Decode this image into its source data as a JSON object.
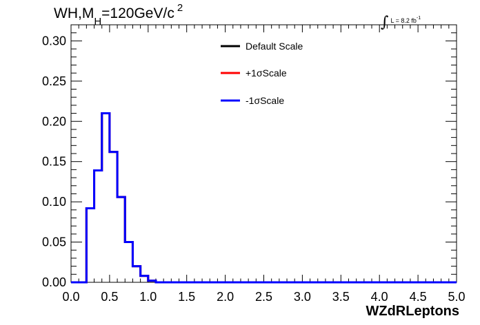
{
  "header": {
    "title_main": "WH,M",
    "title_sub": "H",
    "title_rest": "=120GeV/c",
    "title_sup": "2",
    "lumi_integral": "∫",
    "lumi_text": "L = 8.2 fb",
    "lumi_sup": "-1"
  },
  "chart_data": {
    "type": "line",
    "title": "WH,M_H=120GeV/c^2",
    "xlabel": "WZdRLeptons",
    "ylabel": "",
    "xlim": [
      0.0,
      5.0
    ],
    "ylim": [
      0.0,
      0.32
    ],
    "x_ticks": [
      "0.0",
      "0.5",
      "1.0",
      "1.5",
      "2.0",
      "2.5",
      "3.0",
      "3.5",
      "4.0",
      "4.5",
      "5.0"
    ],
    "y_ticks": [
      "0.00",
      "0.05",
      "0.10",
      "0.15",
      "0.20",
      "0.25",
      "0.30"
    ],
    "bin_edges": [
      0.0,
      0.1,
      0.2,
      0.3,
      0.4,
      0.5,
      0.6,
      0.7,
      0.8,
      0.9,
      1.0,
      1.1,
      1.2,
      1.3,
      1.4,
      1.5,
      1.6,
      1.7,
      1.8,
      1.9,
      2.0,
      2.1,
      2.2,
      2.3,
      2.4,
      2.5,
      2.6,
      2.7,
      2.8,
      2.9,
      3.0,
      3.1,
      3.2,
      3.3,
      3.4,
      3.5,
      3.6,
      3.7,
      3.8,
      3.9,
      4.0,
      4.1,
      4.2,
      4.3,
      4.4,
      4.5,
      4.6,
      4.7,
      4.8,
      4.9,
      5.0
    ],
    "series": [
      {
        "name": "Default Scale",
        "color": "#000000",
        "values": [
          0,
          0,
          0.092,
          0.139,
          0.21,
          0.162,
          0.106,
          0.05,
          0.02,
          0.008,
          0.002,
          0,
          0,
          0,
          0,
          0,
          0,
          0,
          0,
          0,
          0,
          0,
          0,
          0,
          0,
          0,
          0,
          0,
          0,
          0,
          0,
          0,
          0,
          0,
          0,
          0,
          0,
          0,
          0,
          0,
          0,
          0,
          0,
          0,
          0,
          0,
          0,
          0,
          0,
          0
        ]
      },
      {
        "name": "+1σScale",
        "color": "#ff0000",
        "values": [
          0,
          0,
          0.092,
          0.139,
          0.21,
          0.162,
          0.106,
          0.05,
          0.02,
          0.008,
          0.002,
          0,
          0,
          0,
          0,
          0,
          0,
          0,
          0,
          0,
          0,
          0,
          0,
          0,
          0,
          0,
          0,
          0,
          0,
          0,
          0,
          0,
          0,
          0,
          0,
          0,
          0,
          0,
          0,
          0,
          0,
          0,
          0,
          0,
          0,
          0,
          0,
          0,
          0,
          0
        ]
      },
      {
        "name": "-1σScale",
        "color": "#0000ff",
        "values": [
          0,
          0,
          0.092,
          0.139,
          0.21,
          0.162,
          0.106,
          0.05,
          0.02,
          0.008,
          0.002,
          0,
          0,
          0,
          0,
          0,
          0,
          0,
          0,
          0,
          0,
          0,
          0,
          0,
          0,
          0,
          0,
          0,
          0,
          0,
          0,
          0,
          0,
          0,
          0,
          0,
          0,
          0,
          0,
          0,
          0,
          0,
          0,
          0,
          0,
          0,
          0,
          0,
          0,
          0
        ]
      }
    ],
    "legend_position": "top-center",
    "grid": false
  }
}
